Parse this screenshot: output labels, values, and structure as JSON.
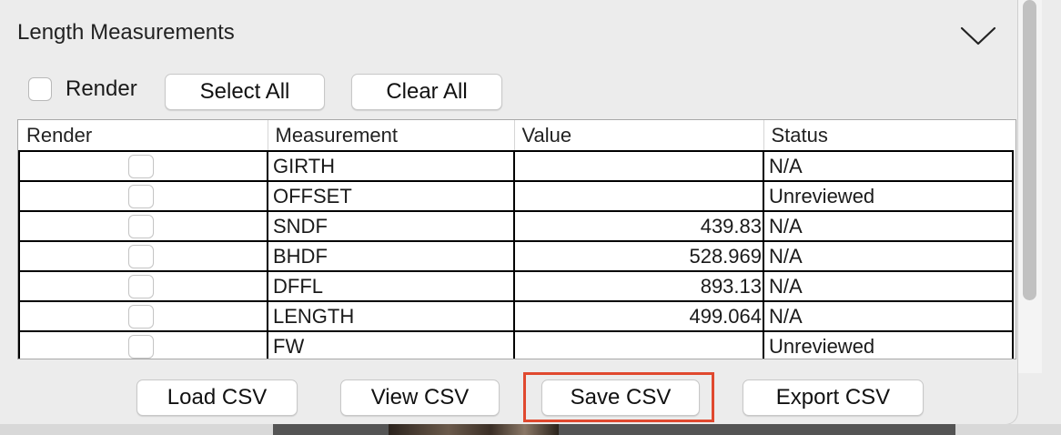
{
  "panel": {
    "title": "Length Measurements",
    "collapse_icon": "chevron-down-icon"
  },
  "toolbar": {
    "render_label": "Render",
    "render_checked": false,
    "select_all_label": "Select All",
    "clear_all_label": "Clear All"
  },
  "table": {
    "columns": [
      "Render",
      "Measurement",
      "Value",
      "Status"
    ],
    "rows": [
      {
        "render": false,
        "measurement": "GIRTH",
        "value": "",
        "status": "N/A"
      },
      {
        "render": false,
        "measurement": "OFFSET",
        "value": "",
        "status": "Unreviewed"
      },
      {
        "render": false,
        "measurement": "SNDF",
        "value": "439.83",
        "status": "N/A"
      },
      {
        "render": false,
        "measurement": "BHDF",
        "value": "528.969",
        "status": "N/A"
      },
      {
        "render": false,
        "measurement": "DFFL",
        "value": "893.13",
        "status": "N/A"
      },
      {
        "render": false,
        "measurement": "LENGTH",
        "value": "499.064",
        "status": "N/A"
      },
      {
        "render": false,
        "measurement": "FW",
        "value": "",
        "status": "Unreviewed"
      }
    ]
  },
  "actions": {
    "load_csv_label": "Load CSV",
    "view_csv_label": "View CSV",
    "save_csv_label": "Save CSV",
    "export_csv_label": "Export CSV"
  },
  "colors": {
    "panel_background": "#ececec",
    "highlight": "#e0492f",
    "cell_border": "#000000"
  }
}
